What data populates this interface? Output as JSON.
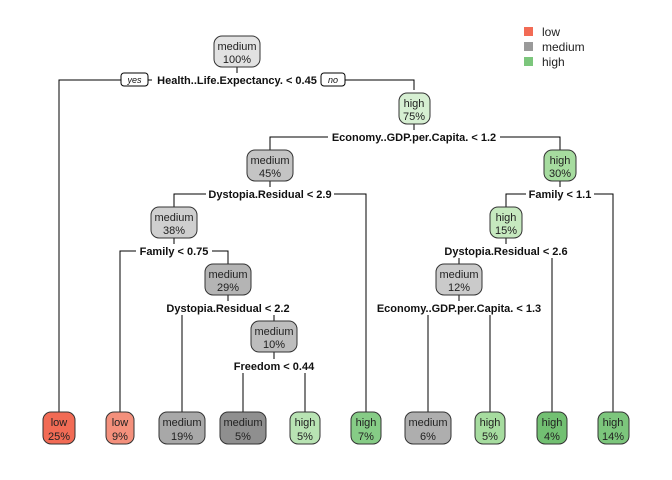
{
  "colors": {
    "low": "#f26b55",
    "low_light": "#f59a8a",
    "medium": "#a8a8a8",
    "medium_light": "#cfcfcf",
    "medium_lighter": "#e2e2e2",
    "medium_dark": "#8f8f8f",
    "high": "#7cc67c",
    "high_light": "#b8e3b3",
    "high_lighter": "#d6efd2"
  },
  "legend": [
    {
      "label": "low",
      "color": "#f26b55"
    },
    {
      "label": "medium",
      "color": "#9a9a9a"
    },
    {
      "label": "high",
      "color": "#7cc67c"
    }
  ],
  "branch_labels": {
    "yes": "yes",
    "no": "no"
  },
  "nodes": {
    "root": {
      "class": "medium",
      "pct": "100%"
    },
    "n_high75": {
      "class": "high",
      "pct": "75%"
    },
    "n_med45": {
      "class": "medium",
      "pct": "45%"
    },
    "n_high30": {
      "class": "high",
      "pct": "30%"
    },
    "n_med38": {
      "class": "medium",
      "pct": "38%"
    },
    "n_high15": {
      "class": "high",
      "pct": "15%"
    },
    "n_med29": {
      "class": "medium",
      "pct": "29%"
    },
    "n_med12": {
      "class": "medium",
      "pct": "12%"
    },
    "n_med10": {
      "class": "medium",
      "pct": "10%"
    },
    "leaf1": {
      "class": "low",
      "pct": "25%"
    },
    "leaf2": {
      "class": "low",
      "pct": "9%"
    },
    "leaf3": {
      "class": "medium",
      "pct": "19%"
    },
    "leaf4": {
      "class": "medium",
      "pct": "5%"
    },
    "leaf5": {
      "class": "high",
      "pct": "5%"
    },
    "leaf6": {
      "class": "high",
      "pct": "7%"
    },
    "leaf7": {
      "class": "medium",
      "pct": "6%"
    },
    "leaf8": {
      "class": "high",
      "pct": "5%"
    },
    "leaf9": {
      "class": "high",
      "pct": "4%"
    },
    "leaf10": {
      "class": "high",
      "pct": "14%"
    }
  },
  "splits": {
    "s_root": "Health..Life.Expectancy. < 0.45",
    "s_econ1": "Economy..GDP.per.Capita. < 1.2",
    "s_dyst1": "Dystopia.Residual < 2.9",
    "s_family1": "Family < 1.1",
    "s_family2": "Family < 0.75",
    "s_dyst2": "Dystopia.Residual < 2.6",
    "s_dyst3": "Dystopia.Residual < 2.2",
    "s_econ2": "Economy..GDP.per.Capita. < 1.3",
    "s_freedom": "Freedom < 0.44"
  }
}
